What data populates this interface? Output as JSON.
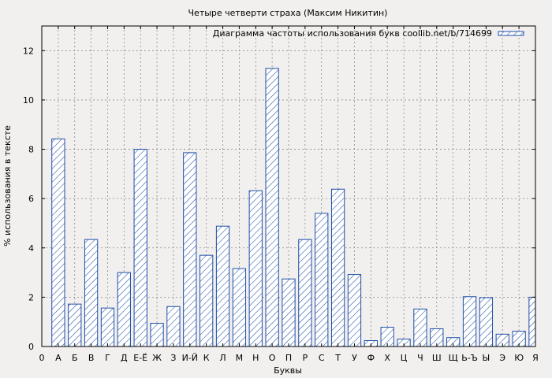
{
  "chart_data": {
    "type": "bar",
    "title": "Четыре четверти страха (Максим Никитин)",
    "xlabel": "Буквы",
    "ylabel": "% использования в тексте",
    "legend": {
      "label": "Диаграмма частоты использования букв coollib.net/b/714699",
      "placement": "top-right"
    },
    "grid": true,
    "ylim": [
      0,
      13
    ],
    "yticks": [
      0,
      2,
      4,
      6,
      8,
      10,
      12
    ],
    "x_axis_start_label": "0",
    "categories": [
      "А",
      "Б",
      "В",
      "Г",
      "Д",
      "Е-Ё",
      "Ж",
      "З",
      "И-Й",
      "К",
      "Л",
      "М",
      "Н",
      "О",
      "П",
      "Р",
      "С",
      "Т",
      "У",
      "Ф",
      "Х",
      "Ц",
      "Ч",
      "Ш",
      "Щ",
      "Ь-Ъ",
      "Ы",
      "Э",
      "Ю",
      "Я"
    ],
    "values": [
      8.42,
      1.72,
      4.34,
      1.56,
      3.0,
      8.0,
      0.94,
      1.62,
      7.86,
      3.7,
      4.88,
      3.16,
      6.32,
      11.28,
      2.74,
      4.34,
      5.4,
      6.38,
      2.92,
      0.24,
      0.78,
      0.3,
      1.52,
      0.72,
      0.36,
      2.02,
      1.98,
      0.5,
      0.62,
      2.0
    ],
    "colors": {
      "bar_stroke": "#1f4fa8",
      "bar_hatch": "#1f4fa8",
      "bar_fill": "#ffffff",
      "plot_bg": "#f2f0ee",
      "grid": "#8a8a8a"
    }
  }
}
